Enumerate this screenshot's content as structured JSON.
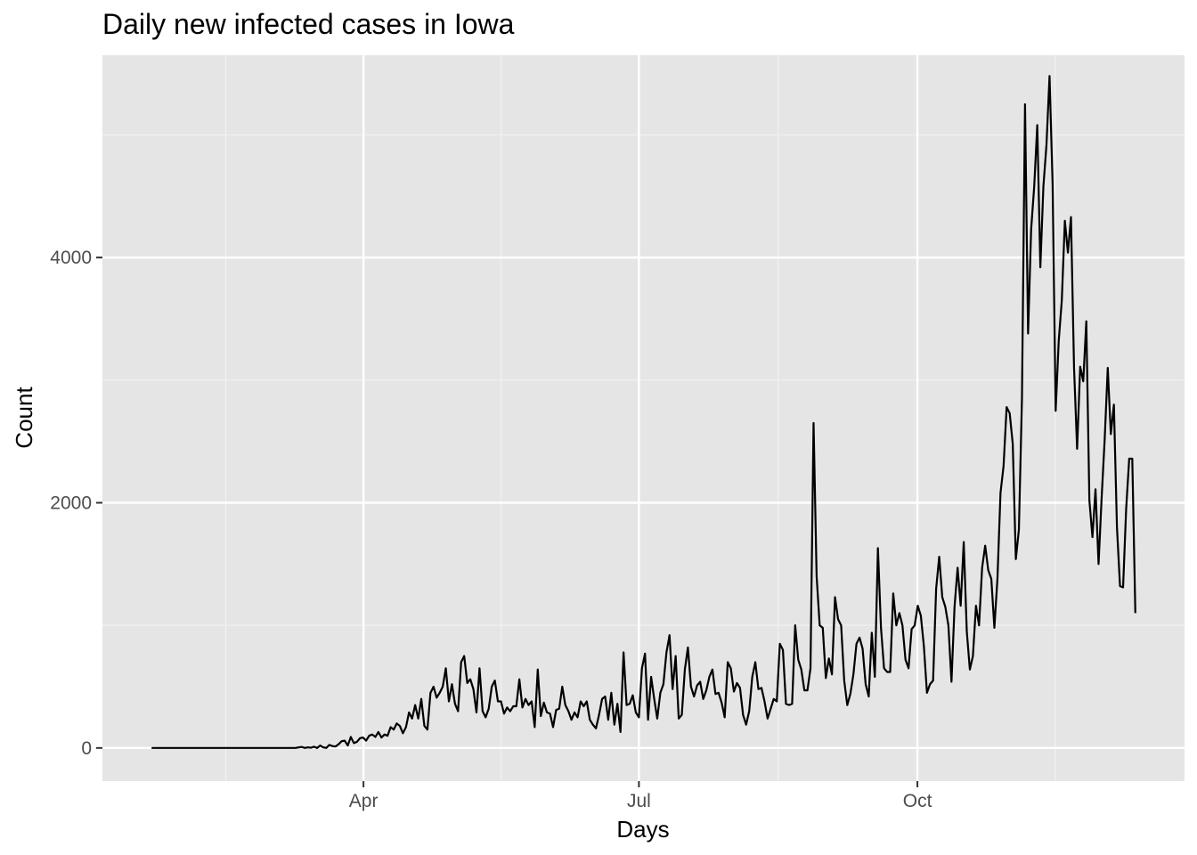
{
  "chart_data": {
    "type": "line",
    "title": "Daily new infected cases in Iowa",
    "xlabel": "Days",
    "ylabel": "Count",
    "x_start": "2020-01-22",
    "x_end": "2020-12-12",
    "x_ticks": [
      {
        "label": "Apr",
        "date": "2020-04-01"
      },
      {
        "label": "Jul",
        "date": "2020-07-01"
      },
      {
        "label": "Oct",
        "date": "2020-10-01"
      }
    ],
    "y_ticks": [
      0,
      2000,
      4000
    ],
    "ylim": [
      -270,
      5650
    ],
    "grid": true,
    "series": [
      {
        "values": [
          0,
          0,
          0,
          0,
          0,
          0,
          0,
          0,
          0,
          0,
          0,
          0,
          0,
          0,
          0,
          0,
          0,
          0,
          0,
          0,
          0,
          0,
          0,
          0,
          0,
          0,
          0,
          0,
          0,
          0,
          0,
          0,
          0,
          0,
          0,
          0,
          0,
          0,
          0,
          0,
          0,
          0,
          0,
          0,
          0,
          0,
          0,
          0,
          5,
          8,
          0,
          5,
          2,
          10,
          0,
          20,
          5,
          0,
          25,
          15,
          12,
          30,
          55,
          60,
          20,
          90,
          40,
          50,
          80,
          85,
          60,
          100,
          110,
          90,
          130,
          85,
          110,
          100,
          170,
          150,
          200,
          180,
          120,
          170,
          290,
          240,
          350,
          240,
          400,
          180,
          150,
          450,
          500,
          410,
          450,
          500,
          650,
          380,
          520,
          360,
          300,
          700,
          750,
          530,
          560,
          480,
          290,
          650,
          300,
          250,
          320,
          500,
          550,
          380,
          380,
          280,
          330,
          300,
          340,
          340,
          560,
          330,
          400,
          350,
          380,
          170,
          640,
          260,
          370,
          290,
          280,
          170,
          310,
          320,
          500,
          350,
          300,
          230,
          290,
          250,
          380,
          340,
          380,
          230,
          190,
          160,
          270,
          400,
          420,
          230,
          450,
          190,
          360,
          130,
          780,
          350,
          360,
          430,
          290,
          250,
          650,
          770,
          230,
          580,
          400,
          240,
          450,
          520,
          780,
          920,
          480,
          750,
          240,
          270,
          640,
          820,
          500,
          420,
          510,
          540,
          400,
          470,
          580,
          640,
          440,
          450,
          370,
          250,
          700,
          650,
          460,
          530,
          490,
          270,
          190,
          300,
          580,
          700,
          480,
          490,
          380,
          240,
          320,
          400,
          380,
          850,
          800,
          360,
          350,
          360,
          1000,
          720,
          640,
          470,
          470,
          650,
          2650,
          1400,
          1000,
          980,
          570,
          730,
          600,
          1230,
          1050,
          1000,
          550,
          350,
          440,
          600,
          850,
          900,
          810,
          520,
          420,
          940,
          580,
          1630,
          980,
          650,
          620,
          620,
          1260,
          1000,
          1100,
          1000,
          720,
          650,
          970,
          1000,
          1160,
          1080,
          830,
          450,
          520,
          550,
          1300,
          1560,
          1230,
          1150,
          1000,
          540,
          1150,
          1470,
          1160,
          1680,
          950,
          640,
          750,
          1160,
          1000,
          1470,
          1650,
          1450,
          1380,
          980,
          1380,
          2080,
          2300,
          2780,
          2730,
          2480,
          1540,
          1780,
          2850,
          5250,
          3380,
          4230,
          4580,
          5080,
          3920,
          4580,
          4920,
          5480,
          4600,
          2750,
          3320,
          3650,
          4300,
          4040,
          4330,
          3100,
          2440,
          3110,
          2990,
          3480,
          2020,
          1720,
          2110,
          1500,
          2040,
          2520,
          3100,
          2560,
          2800,
          1800,
          1320,
          1310,
          1950,
          2360,
          2360,
          1100
        ]
      }
    ]
  }
}
